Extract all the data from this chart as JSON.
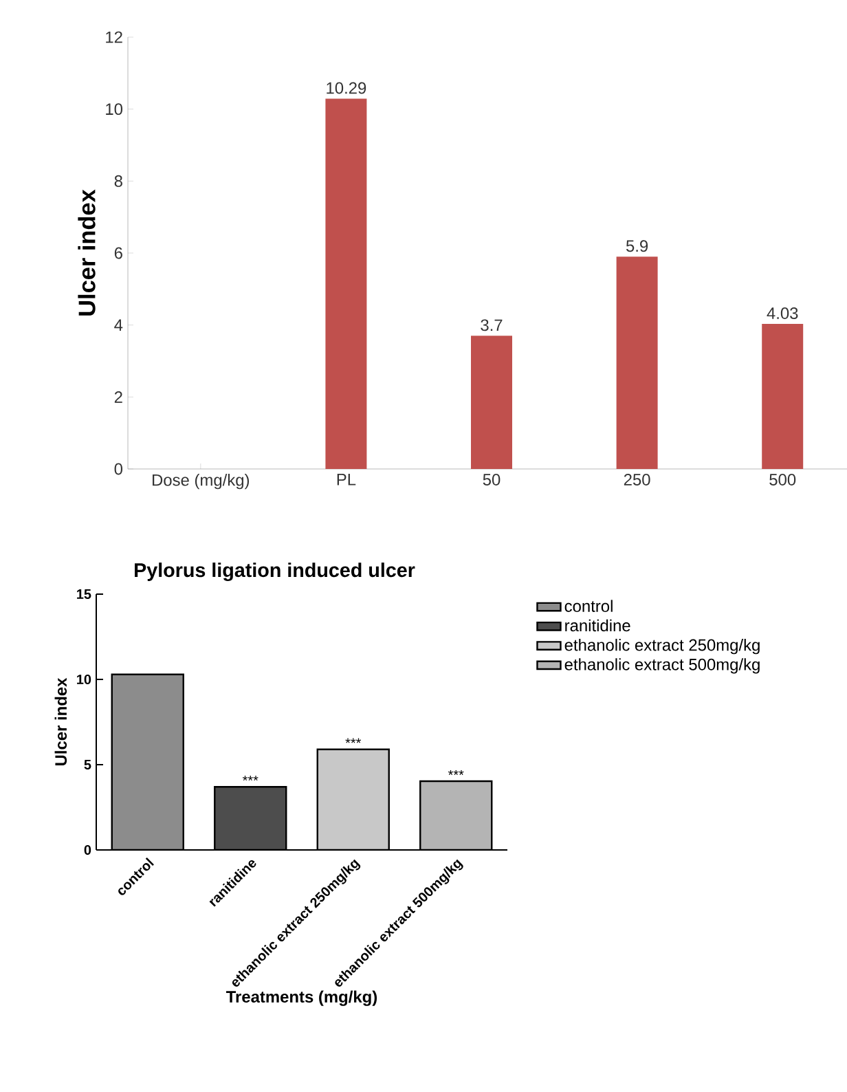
{
  "chart_data": [
    {
      "type": "bar",
      "ylabel": "Ulcer index",
      "categories": [
        "Dose (mg/kg)",
        "PL",
        "50",
        "250",
        "500"
      ],
      "values": [
        null,
        10.29,
        3.7,
        5.9,
        4.03
      ],
      "color": "#c0504d",
      "ylim": [
        0,
        12
      ],
      "yticks": [
        0,
        2,
        4,
        6,
        8,
        10,
        12
      ],
      "data_labels": true,
      "legend": false
    },
    {
      "type": "bar",
      "title": "Pylorus ligation induced ulcer",
      "xlabel": "Treatments (mg/kg)",
      "ylabel": "Ulcer index",
      "categories": [
        "control",
        "ranitidine",
        "ethanolic extract 250mg/kg",
        "ethanolic extract 500mg/kg"
      ],
      "series": [
        {
          "name": "control",
          "color": "#8c8c8c",
          "values": [
            10.29,
            null,
            null,
            null
          ]
        },
        {
          "name": "ranitidine",
          "color": "#4d4d4d",
          "values": [
            null,
            3.7,
            null,
            null
          ]
        },
        {
          "name": "ethanolic extract 250mg/kg",
          "color": "#c8c8c8",
          "values": [
            null,
            null,
            5.9,
            null
          ]
        },
        {
          "name": "ethanolic extract 500mg/kg",
          "color": "#b4b4b4",
          "values": [
            null,
            null,
            null,
            4.03
          ]
        }
      ],
      "ylim": [
        0,
        15
      ],
      "yticks": [
        0,
        5,
        10,
        15
      ],
      "legend": "right",
      "annotations": [
        {
          "text": "***",
          "x": "ranitidine",
          "y": 3.7
        },
        {
          "text": "***",
          "x": "ethanolic extract 250mg/kg",
          "y": 5.9
        },
        {
          "text": "***",
          "x": "ethanolic extract 500mg/kg",
          "y": 4.03
        }
      ]
    }
  ]
}
